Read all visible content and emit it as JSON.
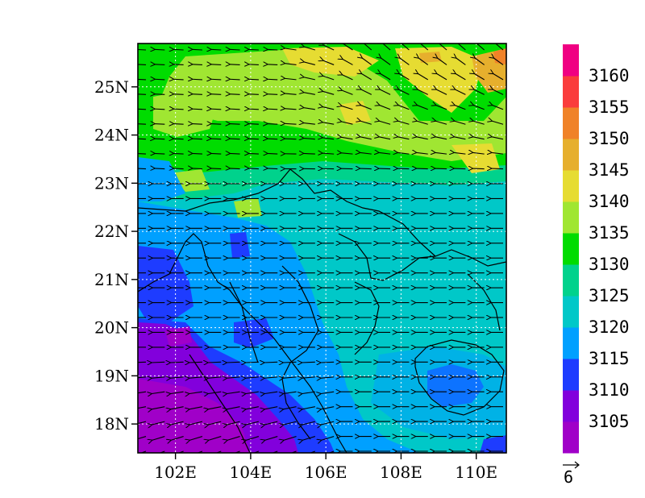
{
  "map": {
    "lat_labels": [
      "25N",
      "24N",
      "23N",
      "22N",
      "21N",
      "20N",
      "19N",
      "18N"
    ],
    "lat_values": [
      25,
      24,
      23,
      22,
      21,
      20,
      19,
      18
    ],
    "lon_labels": [
      "102E",
      "104E",
      "106E",
      "108E",
      "110E"
    ],
    "lon_values": [
      102,
      104,
      106,
      108,
      110
    ],
    "extent": {
      "lon_min": 101.0,
      "lon_max": 110.8,
      "lat_min": 17.4,
      "lat_max": 25.9
    },
    "gridlines": "dotted"
  },
  "colorbar": {
    "labels": [
      "3160",
      "3155",
      "3150",
      "3145",
      "3140",
      "3135",
      "3130",
      "3125",
      "3120",
      "3115",
      "3110",
      "3105"
    ],
    "levels": [
      3105,
      3110,
      3115,
      3120,
      3125,
      3130,
      3135,
      3140,
      3145,
      3150,
      3155,
      3160
    ],
    "colors": [
      "#a000c8",
      "#8200dc",
      "#1e3cff",
      "#00a0ff",
      "#00c8c8",
      "#00d28c",
      "#00dc00",
      "#a0e632",
      "#e6dc32",
      "#e6af2d",
      "#f08228",
      "#fa3c3c",
      "#f00082"
    ]
  },
  "vector_reference": {
    "label": "6"
  },
  "chart_data": {
    "type": "heatmap",
    "variable_levels": [
      3105,
      3110,
      3115,
      3120,
      3125,
      3130,
      3135,
      3140,
      3145,
      3150,
      3155,
      3160
    ],
    "x_range": [
      101.0,
      110.8
    ],
    "y_range": [
      17.4,
      25.9
    ],
    "overlay": "wind vectors",
    "reference_vector_magnitude": 6
  }
}
